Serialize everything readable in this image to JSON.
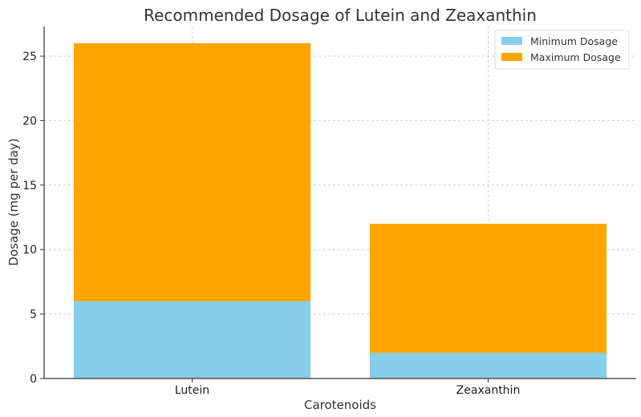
{
  "chart_data": {
    "type": "bar",
    "stacked": true,
    "title": "Recommended Dosage of Lutein and Zeaxanthin",
    "xlabel": "Carotenoids",
    "ylabel": "Dosage (mg per day)",
    "categories": [
      "Lutein",
      "Zeaxanthin"
    ],
    "series": [
      {
        "name": "Minimum Dosage",
        "values": [
          6,
          2
        ],
        "color": "#87CEEB"
      },
      {
        "name": "Maximum Dosage",
        "values": [
          20,
          10
        ],
        "color": "#FFA500"
      }
    ],
    "ylim": [
      0,
      27.3
    ],
    "yticks": [
      0,
      5,
      10,
      15,
      20,
      25
    ],
    "grid": true,
    "legend_position": "top-right"
  }
}
